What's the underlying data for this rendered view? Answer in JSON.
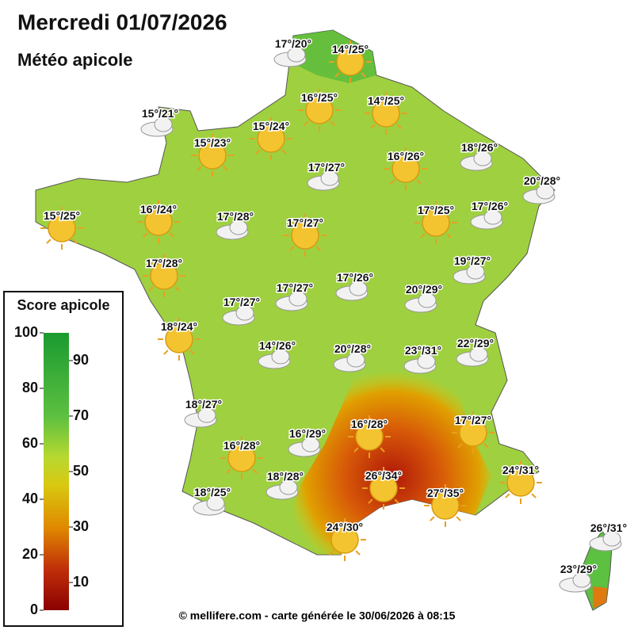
{
  "header": {
    "title": "Mercredi 01/07/2026",
    "subtitle": "Météo apicole"
  },
  "legend": {
    "title": "Score apicole",
    "ticks": [
      0,
      10,
      20,
      30,
      40,
      50,
      60,
      70,
      80,
      90,
      100
    ]
  },
  "stations": [
    "17°/20°",
    "14°/25°",
    "16°/25°",
    "14°/25°",
    "15°/21°",
    "15°/24°",
    "18°/26°",
    "15°/23°",
    "17°/27°",
    "16°/26°",
    "20°/28°",
    "15°/25°",
    "16°/24°",
    "17°/28°",
    "17°/27°",
    "17°/25°",
    "17°/26°",
    "17°/28°",
    "19°/27°",
    "17°/27°",
    "17°/26°",
    "20°/29°",
    "17°/27°",
    "18°/24°",
    "14°/26°",
    "20°/28°",
    "23°/31°",
    "22°/29°",
    "18°/27°",
    "16°/29°",
    "16°/28°",
    "17°/27°",
    "16°/28°",
    "24°/31°",
    "18°/28°",
    "26°/34°",
    "27°/35°",
    "18°/25°",
    "24°/30°",
    "26°/31°",
    "23°/29°"
  ],
  "footer": "© mellifere.com - carte générée le 30/06/2026 à 08:15"
}
